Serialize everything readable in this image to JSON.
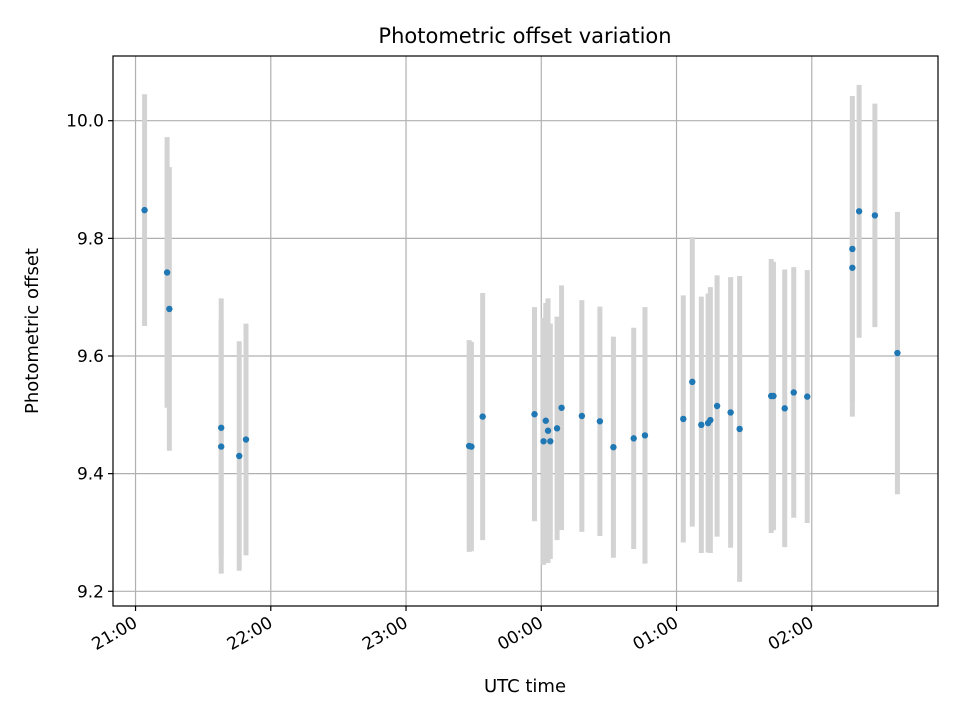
{
  "chart_data": {
    "type": "scatter",
    "title": "Photometric offset variation",
    "xlabel": "UTC time",
    "ylabel": "Photometric offset",
    "x_unit": "UTC clock time (hours past 21:00 on the first night)",
    "xlim": [
      "20:50",
      "02:56"
    ],
    "ylim": [
      9.175,
      10.11
    ],
    "x_ticks": [
      "21:00",
      "22:00",
      "23:00",
      "00:00",
      "01:00",
      "02:00"
    ],
    "y_ticks": [
      "9.2",
      "9.4",
      "9.6",
      "9.8",
      "10.0"
    ],
    "grid": true,
    "colors": {
      "point": "#1f77b4",
      "errorbar": "#d3d3d3",
      "grid": "#b0b0b0"
    },
    "points": [
      {
        "time": "21:04",
        "y": 9.848,
        "err": 0.197
      },
      {
        "time": "21:14",
        "y": 9.742,
        "err": 0.23
      },
      {
        "time": "21:15",
        "y": 9.68,
        "err": 0.241
      },
      {
        "time": "21:38",
        "y": 9.478,
        "err": 0.22
      },
      {
        "time": "21:38",
        "y": 9.446,
        "err": 0.216
      },
      {
        "time": "21:46",
        "y": 9.43,
        "err": 0.195
      },
      {
        "time": "21:49",
        "y": 9.458,
        "err": 0.197
      },
      {
        "time": "23:28",
        "y": 9.447,
        "err": 0.18
      },
      {
        "time": "23:29",
        "y": 9.446,
        "err": 0.178
      },
      {
        "time": "23:34",
        "y": 9.497,
        "err": 0.21
      },
      {
        "time": "23:57",
        "y": 9.501,
        "err": 0.182
      },
      {
        "time": "00:01",
        "y": 9.455,
        "err": 0.21
      },
      {
        "time": "00:02",
        "y": 9.49,
        "err": 0.2
      },
      {
        "time": "00:03",
        "y": 9.473,
        "err": 0.225
      },
      {
        "time": "00:04",
        "y": 9.455,
        "err": 0.2
      },
      {
        "time": "00:07",
        "y": 9.477,
        "err": 0.19
      },
      {
        "time": "00:09",
        "y": 9.512,
        "err": 0.208
      },
      {
        "time": "00:18",
        "y": 9.498,
        "err": 0.197
      },
      {
        "time": "00:26",
        "y": 9.489,
        "err": 0.195
      },
      {
        "time": "00:32",
        "y": 9.445,
        "err": 0.188
      },
      {
        "time": "00:41",
        "y": 9.46,
        "err": 0.188
      },
      {
        "time": "00:46",
        "y": 9.465,
        "err": 0.218
      },
      {
        "time": "01:03",
        "y": 9.493,
        "err": 0.21
      },
      {
        "time": "01:07",
        "y": 9.556,
        "err": 0.246
      },
      {
        "time": "01:11",
        "y": 9.483,
        "err": 0.218
      },
      {
        "time": "01:14",
        "y": 9.486,
        "err": 0.22
      },
      {
        "time": "01:15",
        "y": 9.491,
        "err": 0.226
      },
      {
        "time": "01:18",
        "y": 9.515,
        "err": 0.222
      },
      {
        "time": "01:24",
        "y": 9.504,
        "err": 0.23
      },
      {
        "time": "01:28",
        "y": 9.476,
        "err": 0.26
      },
      {
        "time": "01:42",
        "y": 9.532,
        "err": 0.233
      },
      {
        "time": "01:43",
        "y": 9.532,
        "err": 0.228
      },
      {
        "time": "01:48",
        "y": 9.511,
        "err": 0.236
      },
      {
        "time": "01:52",
        "y": 9.538,
        "err": 0.213
      },
      {
        "time": "01:58",
        "y": 9.531,
        "err": 0.215
      },
      {
        "time": "02:18",
        "y": 9.782,
        "err": 0.26
      },
      {
        "time": "02:18",
        "y": 9.75,
        "err": 0.253
      },
      {
        "time": "02:21",
        "y": 9.846,
        "err": 0.215
      },
      {
        "time": "02:28",
        "y": 9.839,
        "err": 0.19
      },
      {
        "time": "02:38",
        "y": 9.605,
        "err": 0.24
      }
    ]
  }
}
